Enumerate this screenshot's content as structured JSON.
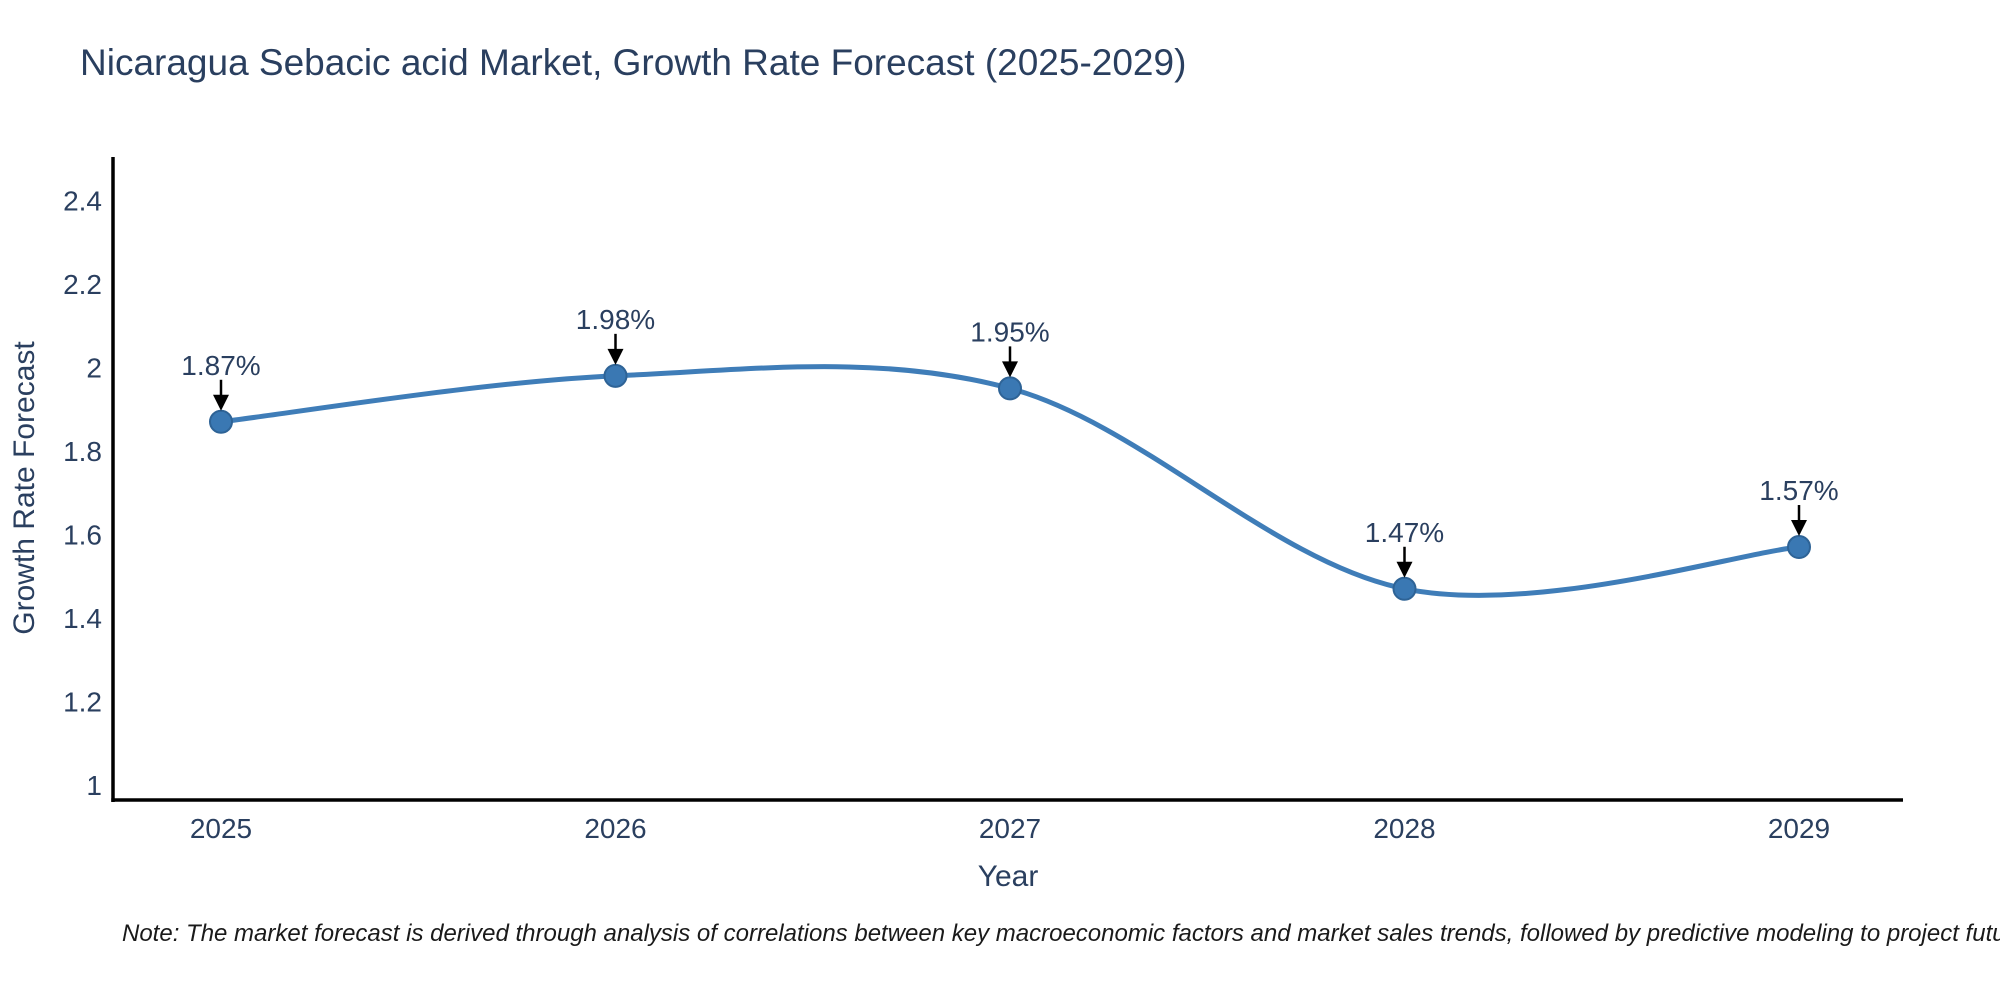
{
  "title": "Nicaragua Sebacic acid Market, Growth Rate Forecast (2025-2029)",
  "note": "Note: The market forecast is derived through analysis of correlations between key macroeconomic factors and market sales trends, followed by predictive modeling to project future sales",
  "chart_data": {
    "type": "line",
    "line_shape": "spline",
    "title": "Nicaragua Sebacic acid Market, Growth Rate Forecast (2025-2029)",
    "xlabel": "Year",
    "ylabel": "Growth Rate Forecast",
    "categories": [
      "2025",
      "2026",
      "2027",
      "2028",
      "2029"
    ],
    "series": [
      {
        "name": "Growth Rate Forecast",
        "values": [
          1.87,
          1.98,
          1.95,
          1.47,
          1.57
        ],
        "point_labels": [
          "1.87%",
          "1.98%",
          "1.95%",
          "1.47%",
          "1.57%"
        ]
      }
    ],
    "yticks": [
      1,
      1.2,
      1.4,
      1.6,
      1.8,
      2,
      2.2,
      2.4
    ],
    "ylim": [
      0.96,
      2.5
    ],
    "grid": false,
    "legend": "none",
    "annotations_have_arrows": true,
    "colors": {
      "line": "#3f7db8",
      "marker_fill": "#3a78b3",
      "marker_edge": "#2e6396",
      "axis": "#000000",
      "text": "#2a3f5f",
      "annotation_text": "#2a3f5f",
      "annotation_arrow": "#000000",
      "background": "#ffffff"
    }
  }
}
